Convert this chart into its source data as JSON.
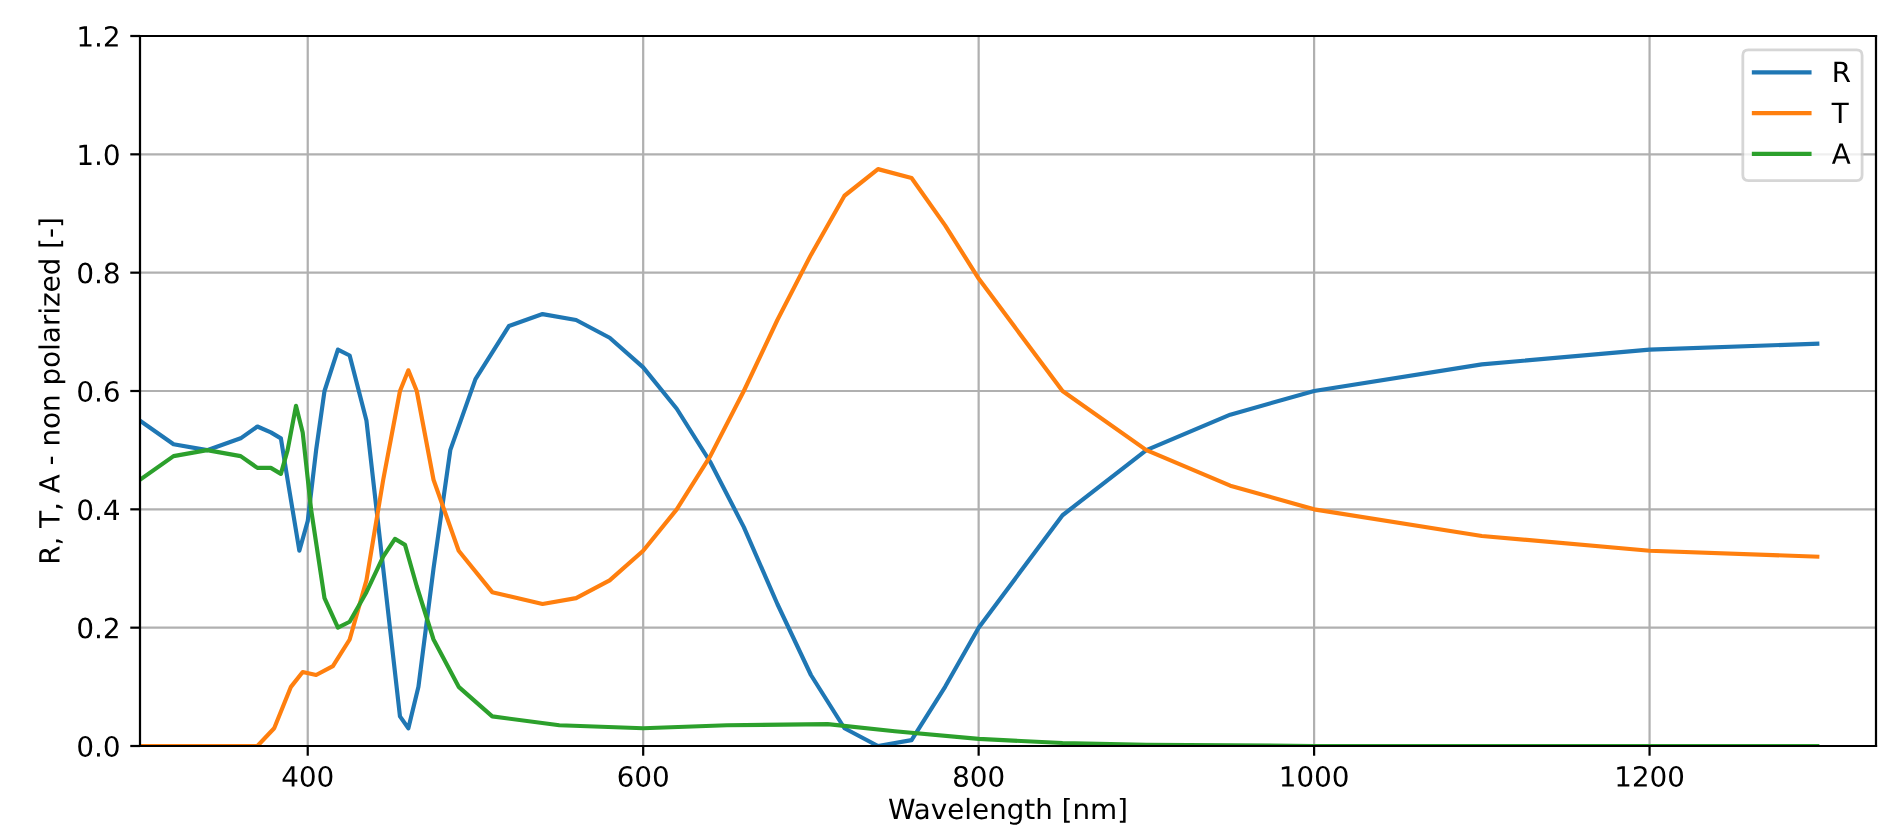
{
  "chart_data": {
    "type": "line",
    "xlabel": "Wavelength [nm]",
    "ylabel": "R, T, A - non polarized [-]",
    "xlim": [
      300,
      1335
    ],
    "ylim": [
      0,
      1.2
    ],
    "xticks": [
      400,
      600,
      800,
      1000,
      1200
    ],
    "yticks": [
      {
        "value": 0,
        "label": "0.0"
      },
      {
        "value": 0.2,
        "label": "0.2"
      },
      {
        "value": 0.4,
        "label": "0.4"
      },
      {
        "value": 0.6,
        "label": "0.6"
      },
      {
        "value": 0.8,
        "label": "0.8"
      },
      {
        "value": 1.0,
        "label": "1.0"
      },
      {
        "value": 1.2,
        "label": "1.2"
      }
    ],
    "grid": true,
    "legend": "top right",
    "series": [
      {
        "name": "R",
        "color": "#1f77b4",
        "x": [
          300,
          320,
          340,
          360,
          370,
          378,
          384,
          388,
          395,
          400,
          405,
          410,
          418,
          425,
          435,
          445,
          455,
          460,
          466,
          475,
          485,
          500,
          520,
          540,
          560,
          580,
          600,
          620,
          640,
          660,
          680,
          700,
          720,
          740,
          760,
          780,
          800,
          850,
          900,
          950,
          1000,
          1100,
          1200,
          1300
        ],
        "values": [
          0.55,
          0.51,
          0.5,
          0.52,
          0.54,
          0.53,
          0.52,
          0.45,
          0.33,
          0.38,
          0.5,
          0.6,
          0.67,
          0.66,
          0.55,
          0.3,
          0.05,
          0.03,
          0.1,
          0.3,
          0.5,
          0.62,
          0.71,
          0.73,
          0.72,
          0.69,
          0.64,
          0.57,
          0.48,
          0.37,
          0.24,
          0.12,
          0.03,
          0.0,
          0.01,
          0.1,
          0.2,
          0.39,
          0.5,
          0.56,
          0.6,
          0.645,
          0.67,
          0.68
        ]
      },
      {
        "name": "T",
        "color": "#ff7f0e",
        "x": [
          300,
          370,
          380,
          390,
          397,
          405,
          415,
          425,
          435,
          445,
          455,
          460,
          465,
          475,
          490,
          510,
          540,
          560,
          580,
          600,
          620,
          640,
          660,
          680,
          700,
          720,
          740,
          760,
          780,
          800,
          850,
          900,
          950,
          1000,
          1100,
          1200,
          1300
        ],
        "values": [
          0.0,
          0.0,
          0.03,
          0.1,
          0.125,
          0.12,
          0.135,
          0.18,
          0.28,
          0.45,
          0.6,
          0.635,
          0.6,
          0.45,
          0.33,
          0.26,
          0.24,
          0.25,
          0.28,
          0.33,
          0.4,
          0.49,
          0.6,
          0.72,
          0.83,
          0.93,
          0.975,
          0.96,
          0.88,
          0.79,
          0.6,
          0.5,
          0.44,
          0.4,
          0.355,
          0.33,
          0.32
        ]
      },
      {
        "name": "A",
        "color": "#2ca02c",
        "x": [
          300,
          320,
          340,
          360,
          370,
          378,
          384,
          388,
          393,
          397,
          402,
          410,
          418,
          425,
          435,
          445,
          452,
          458,
          465,
          475,
          490,
          510,
          550,
          600,
          650,
          710,
          750,
          800,
          850,
          900,
          1000,
          1300
        ],
        "values": [
          0.45,
          0.49,
          0.5,
          0.49,
          0.47,
          0.47,
          0.46,
          0.5,
          0.575,
          0.53,
          0.4,
          0.25,
          0.2,
          0.21,
          0.26,
          0.32,
          0.35,
          0.34,
          0.27,
          0.18,
          0.1,
          0.05,
          0.035,
          0.03,
          0.035,
          0.037,
          0.025,
          0.012,
          0.005,
          0.002,
          0.0,
          0.0
        ]
      }
    ]
  }
}
